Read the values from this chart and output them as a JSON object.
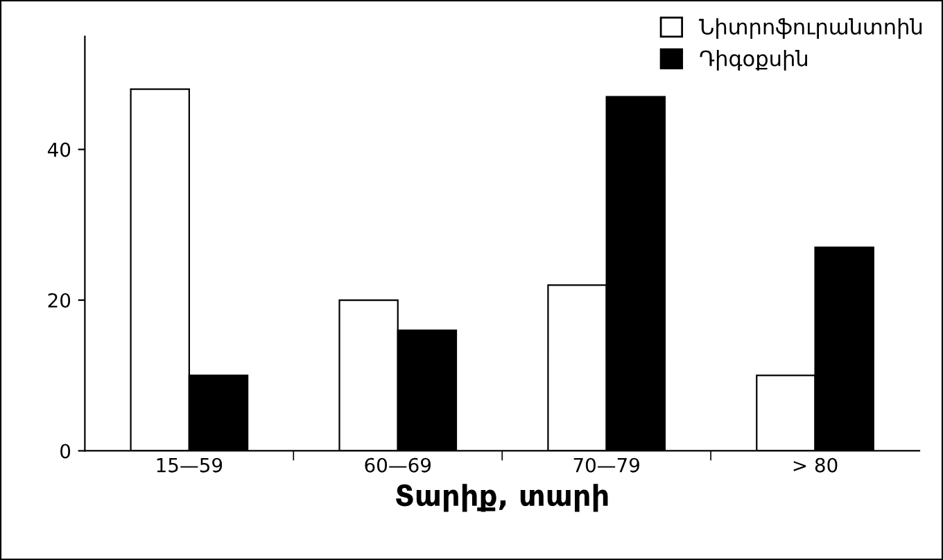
{
  "chart_data": {
    "type": "bar",
    "xlabel": "Տարիք, տարի",
    "categories": [
      "15—59",
      "60—69",
      "70—79",
      "> 80"
    ],
    "series": [
      {
        "name": "Նիտրոֆուրանտոին",
        "color": "#ffffff",
        "values": [
          48,
          20,
          22,
          10
        ]
      },
      {
        "name": "Դիգօքսին",
        "color": "#000000",
        "values": [
          10,
          16,
          47,
          27
        ]
      }
    ],
    "ylim": [
      0,
      55
    ],
    "yticks": [
      0,
      20,
      40
    ],
    "grid": false,
    "legend": "top right"
  }
}
